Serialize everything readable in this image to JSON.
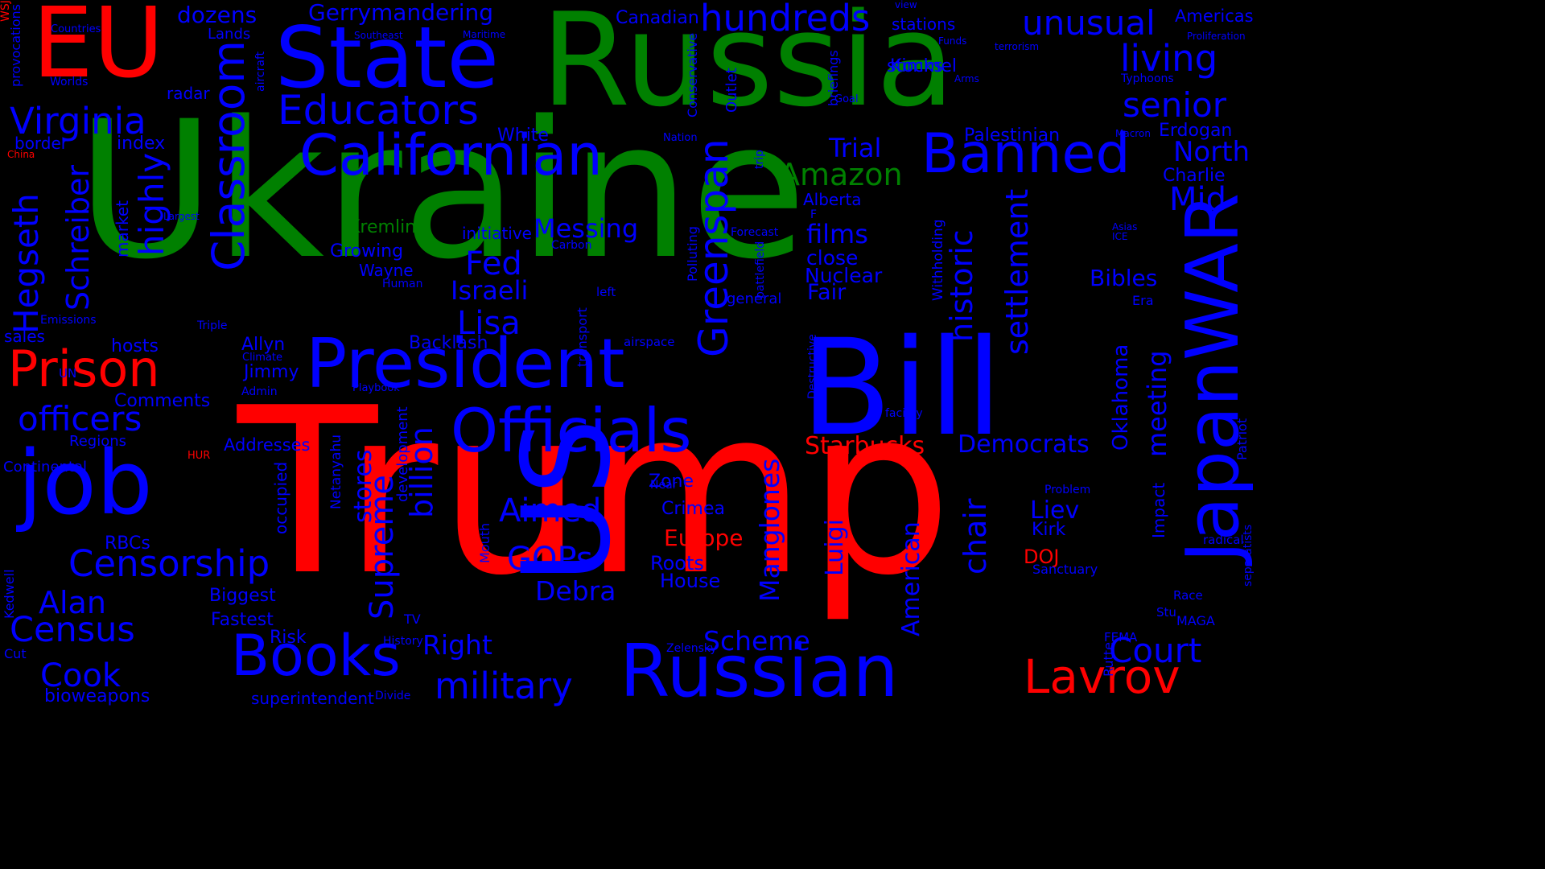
{
  "colors": {
    "background": "#000000",
    "red": "#ff0000",
    "green": "#008000",
    "blue": "#0000ff"
  },
  "words": [
    {
      "text": "Ukraine",
      "color": "green",
      "vertical": false
    },
    {
      "text": "Trump",
      "color": "red",
      "vertical": false
    },
    {
      "text": "Russia",
      "color": "green",
      "vertical": false
    },
    {
      "text": "EU",
      "color": "red",
      "vertical": false
    },
    {
      "text": "Bill",
      "color": "blue",
      "vertical": false
    },
    {
      "text": "State",
      "color": "blue",
      "vertical": false
    },
    {
      "text": "job",
      "color": "blue",
      "vertical": false
    },
    {
      "text": "Russian",
      "color": "blue",
      "vertical": false
    },
    {
      "text": "President",
      "color": "blue",
      "vertical": false
    },
    {
      "text": "JapanWAR",
      "color": "blue",
      "vertical": true
    },
    {
      "text": "US",
      "color": "blue",
      "vertical": true
    },
    {
      "text": "Californian",
      "color": "blue",
      "vertical": false
    },
    {
      "text": "Officials",
      "color": "blue",
      "vertical": false
    },
    {
      "text": "Prison",
      "color": "red",
      "vertical": false
    },
    {
      "text": "Banned",
      "color": "blue",
      "vertical": false
    },
    {
      "text": "Books",
      "color": "blue",
      "vertical": false
    },
    {
      "text": "Lavrov",
      "color": "red",
      "vertical": false
    },
    {
      "text": "Educators",
      "color": "blue",
      "vertical": false
    },
    {
      "text": "Classroom",
      "color": "blue",
      "vertical": true
    },
    {
      "text": "Virginia",
      "color": "blue",
      "vertical": false
    },
    {
      "text": "hundreds",
      "color": "blue",
      "vertical": false
    },
    {
      "text": "unusual",
      "color": "blue",
      "vertical": false
    },
    {
      "text": "living",
      "color": "blue",
      "vertical": false
    },
    {
      "text": "senior",
      "color": "blue",
      "vertical": false
    },
    {
      "text": "Censorship",
      "color": "blue",
      "vertical": false
    },
    {
      "text": "military",
      "color": "blue",
      "vertical": false
    },
    {
      "text": "officers",
      "color": "blue",
      "vertical": false
    },
    {
      "text": "Census",
      "color": "blue",
      "vertical": false
    },
    {
      "text": "Court",
      "color": "blue",
      "vertical": false
    },
    {
      "text": "Amazon",
      "color": "green",
      "vertical": false
    },
    {
      "text": "Greenspan",
      "color": "blue",
      "vertical": true
    },
    {
      "text": "Hegseth",
      "color": "blue",
      "vertical": true
    },
    {
      "text": "highly",
      "color": "blue",
      "vertical": true
    },
    {
      "text": "historic",
      "color": "blue",
      "vertical": true
    },
    {
      "text": "settlement",
      "color": "blue",
      "vertical": true
    },
    {
      "text": "Supreme",
      "color": "blue",
      "vertical": true
    },
    {
      "text": "billion",
      "color": "blue",
      "vertical": true
    },
    {
      "text": "Aimed",
      "color": "blue",
      "vertical": false
    },
    {
      "text": "GOPs",
      "color": "blue",
      "vertical": false
    },
    {
      "text": "Fed",
      "color": "blue",
      "vertical": false
    },
    {
      "text": "Lisa",
      "color": "blue",
      "vertical": false
    },
    {
      "text": "Alan",
      "color": "blue",
      "vertical": false
    },
    {
      "text": "Cook",
      "color": "blue",
      "vertical": false
    },
    {
      "text": "Mid",
      "color": "blue",
      "vertical": false
    },
    {
      "text": "Trial",
      "color": "blue",
      "vertical": false
    },
    {
      "text": "North",
      "color": "blue",
      "vertical": false
    },
    {
      "text": "films",
      "color": "blue",
      "vertical": false
    },
    {
      "text": "Messing",
      "color": "blue",
      "vertical": false
    },
    {
      "text": "Israeli",
      "color": "blue",
      "vertical": false
    },
    {
      "text": "chair",
      "color": "blue",
      "vertical": true
    },
    {
      "text": "meeting",
      "color": "blue",
      "vertical": true
    },
    {
      "text": "Democrats",
      "color": "blue",
      "vertical": false
    },
    {
      "text": "Starbucks",
      "color": "red",
      "vertical": false
    },
    {
      "text": "Scheme",
      "color": "blue",
      "vertical": false
    },
    {
      "text": "Right",
      "color": "blue",
      "vertical": false
    },
    {
      "text": "Debra",
      "color": "blue",
      "vertical": false
    },
    {
      "text": "Liev",
      "color": "blue",
      "vertical": false
    },
    {
      "text": "Bibles",
      "color": "blue",
      "vertical": false
    },
    {
      "text": "Schreiber",
      "color": "blue",
      "vertical": true
    },
    {
      "text": "dozens",
      "color": "blue",
      "vertical": false
    },
    {
      "text": "Gerrymandering",
      "color": "blue",
      "vertical": false
    },
    {
      "text": "Manglones",
      "color": "blue",
      "vertical": true
    },
    {
      "text": "Luigi",
      "color": "blue",
      "vertical": true
    },
    {
      "text": "American",
      "color": "blue",
      "vertical": true
    },
    {
      "text": "Oklahoma",
      "color": "blue",
      "vertical": true
    },
    {
      "text": "stores",
      "color": "blue",
      "vertical": true
    },
    {
      "text": "Fair",
      "color": "blue",
      "vertical": false
    },
    {
      "text": "close",
      "color": "blue",
      "vertical": false
    },
    {
      "text": "Nuclear",
      "color": "blue",
      "vertical": false
    },
    {
      "text": "Growing",
      "color": "blue",
      "vertical": false
    },
    {
      "text": "Kremlin",
      "color": "green",
      "vertical": false
    },
    {
      "text": "Europe",
      "color": "red",
      "vertical": false
    },
    {
      "text": "DOJ",
      "color": "red",
      "vertical": false
    },
    {
      "text": "Kirk",
      "color": "blue",
      "vertical": false
    },
    {
      "text": "Zone",
      "color": "blue",
      "vertical": false
    },
    {
      "text": "Crimea",
      "color": "blue",
      "vertical": false
    },
    {
      "text": "Roots",
      "color": "blue",
      "vertical": false
    },
    {
      "text": "House",
      "color": "blue",
      "vertical": false
    },
    {
      "text": "Risk",
      "color": "blue",
      "vertical": false
    },
    {
      "text": "Fastest",
      "color": "blue",
      "vertical": false
    },
    {
      "text": "Biggest",
      "color": "blue",
      "vertical": false
    },
    {
      "text": "Jimmy",
      "color": "blue",
      "vertical": false
    },
    {
      "text": "Allyn",
      "color": "blue",
      "vertical": false
    },
    {
      "text": "hosts",
      "color": "blue",
      "vertical": false
    },
    {
      "text": "Comments",
      "color": "blue",
      "vertical": false
    },
    {
      "text": "Addresses",
      "color": "blue",
      "vertical": false
    },
    {
      "text": "RBCs",
      "color": "blue",
      "vertical": false
    },
    {
      "text": "bioweapons",
      "color": "blue",
      "vertical": false
    },
    {
      "text": "superintendent",
      "color": "blue",
      "vertical": false
    },
    {
      "text": "initiative",
      "color": "blue",
      "vertical": false
    },
    {
      "text": "Wayne",
      "color": "blue",
      "vertical": false
    },
    {
      "text": "White",
      "color": "blue",
      "vertical": false
    },
    {
      "text": "Palestinian",
      "color": "blue",
      "vertical": false
    },
    {
      "text": "stations",
      "color": "blue",
      "vertical": false
    },
    {
      "text": "stocks",
      "color": "blue",
      "vertical": false
    },
    {
      "text": "Kimmel",
      "color": "blue",
      "vertical": false
    },
    {
      "text": "Americas",
      "color": "blue",
      "vertical": false
    },
    {
      "text": "Erdogan",
      "color": "blue",
      "vertical": false
    },
    {
      "text": "Charlie",
      "color": "blue",
      "vertical": false
    },
    {
      "text": "Canadian",
      "color": "blue",
      "vertical": false
    },
    {
      "text": "Alberta",
      "color": "blue",
      "vertical": false
    },
    {
      "text": "index",
      "color": "blue",
      "vertical": false
    },
    {
      "text": "border",
      "color": "blue",
      "vertical": false
    },
    {
      "text": "radar",
      "color": "blue",
      "vertical": false
    },
    {
      "text": "Lands",
      "color": "blue",
      "vertical": false
    },
    {
      "text": "sales",
      "color": "blue",
      "vertical": false
    },
    {
      "text": "Backlash",
      "color": "blue",
      "vertical": false
    },
    {
      "text": "general",
      "color": "blue",
      "vertical": false
    },
    {
      "text": "Era",
      "color": "blue",
      "vertical": false
    },
    {
      "text": "TV",
      "color": "blue",
      "vertical": false
    },
    {
      "text": "Cut",
      "color": "blue",
      "vertical": false
    },
    {
      "text": "Continental",
      "color": "blue",
      "vertical": false
    },
    {
      "text": "Kedwell",
      "color": "blue",
      "vertical": true
    },
    {
      "text": "Regions",
      "color": "blue",
      "vertical": false
    },
    {
      "text": "occupied",
      "color": "blue",
      "vertical": true
    },
    {
      "text": "Netanyahu",
      "color": "blue",
      "vertical": true
    },
    {
      "text": "development",
      "color": "blue",
      "vertical": true
    },
    {
      "text": "Mouth",
      "color": "blue",
      "vertical": true
    },
    {
      "text": "transport",
      "color": "blue",
      "vertical": true
    },
    {
      "text": "market",
      "color": "blue",
      "vertical": true
    },
    {
      "text": "Outlet",
      "color": "blue",
      "vertical": true
    },
    {
      "text": "Conservative",
      "color": "blue",
      "vertical": true
    },
    {
      "text": "Polluting",
      "color": "blue",
      "vertical": true
    },
    {
      "text": "Withholding",
      "color": "blue",
      "vertical": true
    },
    {
      "text": "Destructive",
      "color": "blue",
      "vertical": true
    },
    {
      "text": "battlefield",
      "color": "blue",
      "vertical": true
    },
    {
      "text": "Impact",
      "color": "blue",
      "vertical": true
    },
    {
      "text": "Patriot",
      "color": "blue",
      "vertical": true
    },
    {
      "text": "separatists",
      "color": "blue",
      "vertical": true
    },
    {
      "text": "provocations",
      "color": "blue",
      "vertical": true
    },
    {
      "text": "aircraft",
      "color": "blue",
      "vertical": true
    },
    {
      "text": "briefings",
      "color": "blue",
      "vertical": true
    },
    {
      "text": "trip",
      "color": "blue",
      "vertical": true
    },
    {
      "text": "Rutte",
      "color": "blue",
      "vertical": true
    },
    {
      "text": "MAGA",
      "color": "blue",
      "vertical": false
    },
    {
      "text": "Stu",
      "color": "blue",
      "vertical": false
    },
    {
      "text": "Race",
      "color": "blue",
      "vertical": false
    },
    {
      "text": "radical",
      "color": "blue",
      "vertical": false
    },
    {
      "text": "Sanctuary",
      "color": "blue",
      "vertical": false
    },
    {
      "text": "Problem",
      "color": "blue",
      "vertical": false
    },
    {
      "text": "FEMA",
      "color": "blue",
      "vertical": false
    },
    {
      "text": "Zelensky",
      "color": "blue",
      "vertical": false
    },
    {
      "text": "Near",
      "color": "blue",
      "vertical": false
    },
    {
      "text": "airspace",
      "color": "blue",
      "vertical": false
    },
    {
      "text": "facility",
      "color": "blue",
      "vertical": false
    },
    {
      "text": "left",
      "color": "blue",
      "vertical": false
    },
    {
      "text": "Carbon",
      "color": "blue",
      "vertical": false
    },
    {
      "text": "Human",
      "color": "blue",
      "vertical": false
    },
    {
      "text": "Triple",
      "color": "blue",
      "vertical": false
    },
    {
      "text": "Climate",
      "color": "blue",
      "vertical": false
    },
    {
      "text": "Admin",
      "color": "blue",
      "vertical": false
    },
    {
      "text": "Playbook",
      "color": "blue",
      "vertical": false
    },
    {
      "text": "UN",
      "color": "blue",
      "vertical": false
    },
    {
      "text": "HUR",
      "color": "red",
      "vertical": false
    },
    {
      "text": "Emissions",
      "color": "blue",
      "vertical": false
    },
    {
      "text": "Divide",
      "color": "blue",
      "vertical": false
    },
    {
      "text": "History",
      "color": "blue",
      "vertical": false
    },
    {
      "text": "F",
      "color": "blue",
      "vertical": false
    },
    {
      "text": "Forecast",
      "color": "blue",
      "vertical": false
    },
    {
      "text": "Asias",
      "color": "blue",
      "vertical": false
    },
    {
      "text": "ICE",
      "color": "blue",
      "vertical": false
    },
    {
      "text": "Macron",
      "color": "blue",
      "vertical": false
    },
    {
      "text": "Nation",
      "color": "blue",
      "vertical": false
    },
    {
      "text": "Goal",
      "color": "blue",
      "vertical": false
    },
    {
      "text": "Typhoons",
      "color": "blue",
      "vertical": false
    },
    {
      "text": "Proliferation",
      "color": "blue",
      "vertical": false
    },
    {
      "text": "terrorism",
      "color": "blue",
      "vertical": false
    },
    {
      "text": "Arms",
      "color": "blue",
      "vertical": false
    },
    {
      "text": "Funds",
      "color": "blue",
      "vertical": false
    },
    {
      "text": "view",
      "color": "blue",
      "vertical": false
    },
    {
      "text": "Southeast",
      "color": "blue",
      "vertical": false
    },
    {
      "text": "Maritime",
      "color": "blue",
      "vertical": false
    },
    {
      "text": "Countries",
      "color": "blue",
      "vertical": false
    },
    {
      "text": "Worlds",
      "color": "blue",
      "vertical": false
    },
    {
      "text": "China",
      "color": "red",
      "vertical": false
    },
    {
      "text": "Largest",
      "color": "blue",
      "vertical": false
    },
    {
      "text": "WSJ",
      "color": "red",
      "vertical": true
    }
  ]
}
